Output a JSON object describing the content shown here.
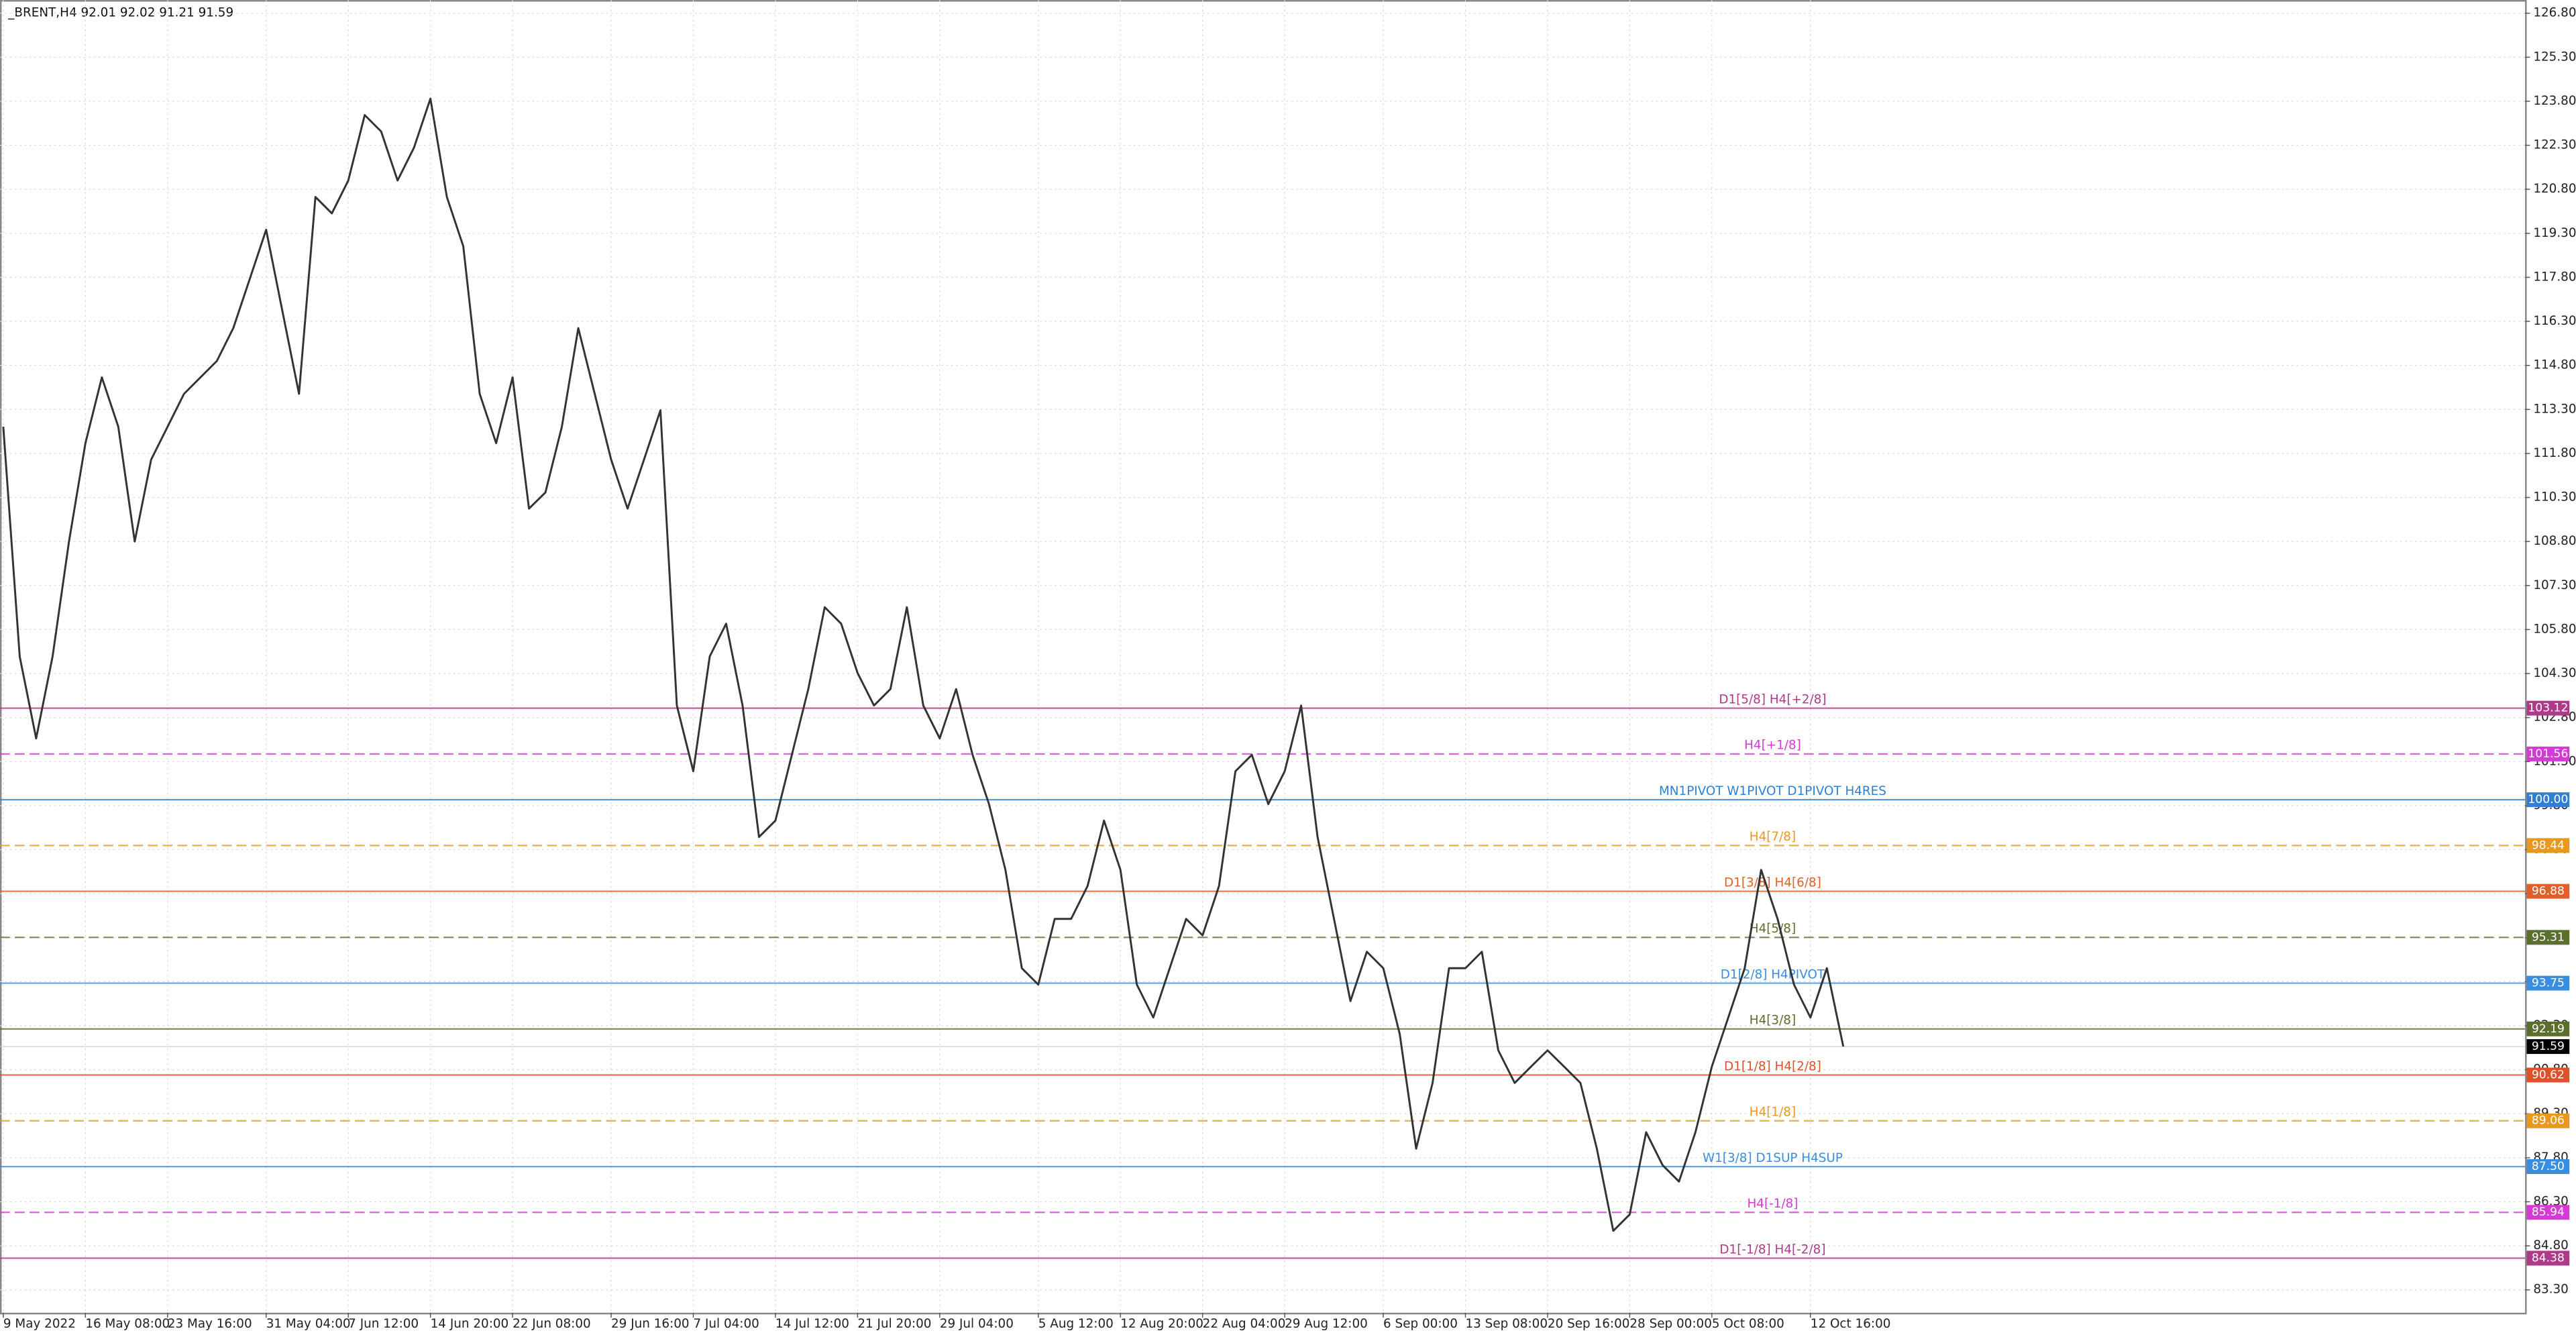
{
  "header": "_BRENT,H4  92.01 92.02 91.21 91.59",
  "chart_data": {
    "type": "line",
    "series": [
      {
        "name": "_BRENT,H4",
        "color": "#333333",
        "values": [
          112.71,
          104.88,
          102.09,
          104.88,
          108.8,
          112.15,
          114.39,
          112.71,
          108.8,
          111.59,
          112.71,
          113.83,
          114.39,
          114.95,
          116.07,
          117.74,
          119.42,
          116.62,
          113.83,
          120.54,
          119.98,
          121.1,
          123.33,
          122.77,
          121.1,
          122.22,
          123.89,
          120.54,
          118.86,
          113.83,
          112.15,
          114.39,
          109.92,
          110.47,
          112.71,
          116.07,
          113.83,
          111.59,
          109.92,
          111.59,
          113.27,
          103.21,
          100.97,
          104.88,
          106.0,
          103.21,
          98.73,
          99.29,
          101.53,
          103.77,
          106.56,
          106.0,
          104.32,
          103.21,
          103.77,
          106.56,
          103.21,
          102.09,
          103.77,
          101.53,
          99.85,
          97.61,
          94.26,
          93.7,
          95.94,
          95.94,
          97.06,
          99.29,
          97.61,
          93.7,
          92.58,
          94.26,
          95.94,
          95.38,
          97.06,
          100.97,
          101.53,
          99.85,
          100.97,
          103.21,
          98.73,
          95.94,
          93.14,
          94.82,
          94.26,
          92.02,
          88.11,
          90.35,
          94.26,
          94.26,
          94.82,
          91.46,
          90.35,
          90.91,
          91.46,
          90.91,
          90.35,
          88.11,
          85.31,
          85.87,
          88.67,
          87.55,
          86.99,
          88.67,
          90.91,
          92.58,
          94.26,
          97.61,
          95.94,
          93.7,
          92.58,
          94.26,
          91.59
        ]
      }
    ],
    "categories": [
      "9 May 2022",
      null,
      null,
      null,
      null,
      "16 May 08:00",
      null,
      null,
      null,
      null,
      "23 May 16:00",
      null,
      null,
      null,
      null,
      null,
      "31 May 04:00",
      null,
      null,
      null,
      null,
      "7 Jun 12:00",
      null,
      null,
      null,
      null,
      "14 Jun 20:00",
      null,
      null,
      null,
      null,
      "22 Jun 08:00",
      null,
      null,
      null,
      null,
      null,
      "29 Jun 16:00",
      null,
      null,
      null,
      null,
      "7 Jul 04:00",
      null,
      null,
      null,
      null,
      "14 Jul 12:00",
      null,
      null,
      null,
      null,
      "21 Jul 20:00",
      null,
      null,
      null,
      null,
      "29 Jul 04:00",
      null,
      null,
      null,
      null,
      null,
      "5 Aug 12:00",
      null,
      null,
      null,
      null,
      "12 Aug 20:00",
      null,
      null,
      null,
      null,
      "22 Aug 04:00",
      null,
      null,
      null,
      null,
      "29 Aug 12:00",
      null,
      null,
      null,
      null,
      null,
      "6 Sep 00:00",
      null,
      null,
      null,
      null,
      "13 Sep 08:00",
      null,
      null,
      null,
      null,
      "20 Sep 16:00",
      null,
      null,
      null,
      null,
      "28 Sep 00:00",
      null,
      null,
      null,
      null,
      "5 Oct 08:00",
      null,
      null,
      null,
      null,
      null,
      "12 Oct 16:00",
      null,
      null
    ],
    "ylim": [
      82.52,
      127.25
    ],
    "yticks": [
      {
        "value": 126.8,
        "label": "126.80"
      },
      {
        "value": 125.3,
        "label": "125.30"
      },
      {
        "value": 123.8,
        "label": "123.80"
      },
      {
        "value": 122.3,
        "label": "122.30"
      },
      {
        "value": 120.8,
        "label": "120.80"
      },
      {
        "value": 119.3,
        "label": "119.30"
      },
      {
        "value": 117.8,
        "label": "117.80"
      },
      {
        "value": 116.3,
        "label": "116.30"
      },
      {
        "value": 114.8,
        "label": "114.80"
      },
      {
        "value": 113.3,
        "label": "113.30"
      },
      {
        "value": 111.8,
        "label": "111.80"
      },
      {
        "value": 110.3,
        "label": "110.30"
      },
      {
        "value": 108.8,
        "label": "108.80"
      },
      {
        "value": 107.3,
        "label": "107.30"
      },
      {
        "value": 105.8,
        "label": "105.80"
      },
      {
        "value": 104.3,
        "label": "104.30"
      },
      {
        "value": 102.8,
        "label": "102.80"
      },
      {
        "value": 101.3,
        "label": "101.30"
      },
      {
        "value": 99.8,
        "label": "99.80"
      },
      {
        "value": 98.3,
        "label": "98.30"
      },
      {
        "value": 96.8,
        "label": "96.80"
      },
      {
        "value": 95.3,
        "label": "95.30"
      },
      {
        "value": 93.8,
        "label": "93.80"
      },
      {
        "value": 92.3,
        "label": "92.30"
      },
      {
        "value": 90.8,
        "label": "90.80"
      },
      {
        "value": 89.3,
        "label": "89.30"
      },
      {
        "value": 87.8,
        "label": "87.80"
      },
      {
        "value": 86.3,
        "label": "86.30"
      },
      {
        "value": 84.8,
        "label": "84.80"
      },
      {
        "value": 83.3,
        "label": "83.30"
      }
    ],
    "grid": true,
    "levels": [
      {
        "name": "D1[5/8] H4[+2/8]",
        "value": 103.12,
        "value_label": "103.12",
        "color": "#b03a8a",
        "dashed": false
      },
      {
        "name": "H4[+1/8]",
        "value": 101.56,
        "value_label": "101.56",
        "color": "#d63ad6",
        "dashed": true
      },
      {
        "name": "MN1PIVOT W1PIVOT D1PIVOT H4RES",
        "value": 100.0,
        "value_label": "100.00",
        "color": "#2f80d0",
        "dashed": false
      },
      {
        "name": "H4[7/8]",
        "value": 98.44,
        "value_label": "98.44",
        "color": "#e8981e",
        "dashed": true
      },
      {
        "name": "D1[3/8] H4[6/8]",
        "value": 96.88,
        "value_label": "96.88",
        "color": "#e0602a",
        "dashed": false
      },
      {
        "name": "H4[5/8]",
        "value": 95.31,
        "value_label": "95.31",
        "color": "#5a6e2e",
        "dashed": true
      },
      {
        "name": "D1[2/8] H4PIVOT",
        "value": 93.75,
        "value_label": "93.75",
        "color": "#3a8ee0",
        "dashed": false
      },
      {
        "name": "H4[3/8]",
        "value": 92.19,
        "value_label": "92.19",
        "color": "#5a6e2e",
        "dashed": false
      },
      {
        "name": "D1[1/8] H4[2/8]",
        "value": 90.62,
        "value_label": "90.62",
        "color": "#e0502a",
        "dashed": false
      },
      {
        "name": "H4[1/8]",
        "value": 89.06,
        "value_label": "89.06",
        "color": "#e8981e",
        "dashed": true
      },
      {
        "name": "W1[3/8] D1SUP H4SUP",
        "value": 87.5,
        "value_label": "87.50",
        "color": "#3a8ee0",
        "dashed": false
      },
      {
        "name": "H4[-1/8]",
        "value": 85.94,
        "value_label": "85.94",
        "color": "#d63ad6",
        "dashed": true
      },
      {
        "name": "D1[-1/8] H4[-2/8]",
        "value": 84.38,
        "value_label": "84.38",
        "color": "#b03a8a",
        "dashed": false
      }
    ],
    "last_price": {
      "value": 91.59,
      "label": "91.59"
    }
  }
}
